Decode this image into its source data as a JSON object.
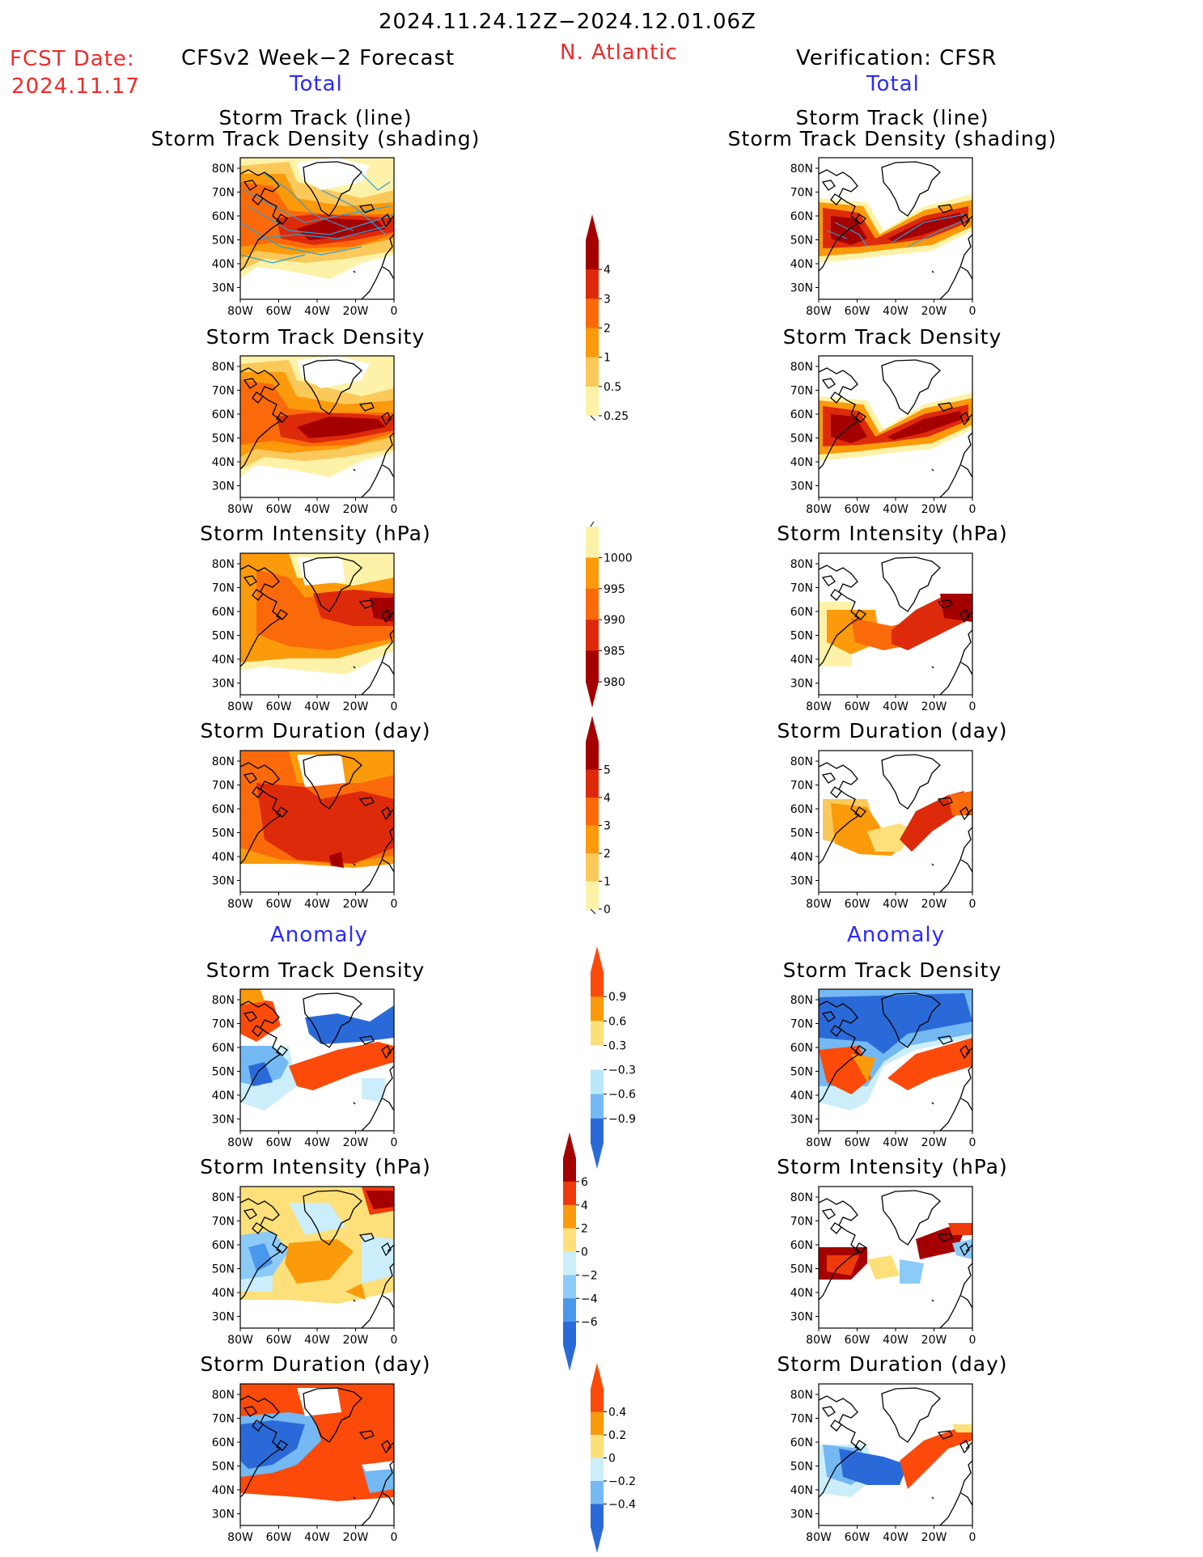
{
  "header": {
    "date_range": "2024.11.24.12Z−2024.12.01.06Z",
    "fcst_label": "FCST Date:",
    "fcst_date": "2024.11.17",
    "left_model": "CFSv2 Week−2 Forecast",
    "region": "N. Atlantic",
    "right_model": "Verification: CFSR"
  },
  "sections": {
    "total": "Total",
    "anomaly": "Anomaly"
  },
  "panel_titles": {
    "track_line": "Storm Track (line)",
    "track_density_shading": "Storm Track Density (shading)",
    "track_density": "Storm Track Density",
    "intensity": "Storm Intensity (hPa)",
    "duration": "Storm Duration (day)"
  },
  "axes": {
    "lat_labels": [
      "80N",
      "70N",
      "60N",
      "50N",
      "40N",
      "30N"
    ],
    "lon_labels": [
      "80W",
      "60W",
      "40W",
      "20W",
      "0"
    ]
  },
  "colorbars": {
    "track_density": {
      "labels": [
        "4",
        "3",
        "2",
        "1",
        "0.5",
        "0.25"
      ],
      "colors": [
        "#a50000",
        "#dd2a0a",
        "#fb6a0a",
        "#fb9a0a",
        "#fbc85a",
        "#fdf2a8"
      ]
    },
    "intensity": {
      "labels": [
        "1000",
        "995",
        "990",
        "985",
        "980"
      ],
      "colors": [
        "#fdf2a8",
        "#fb9a0a",
        "#fb6a0a",
        "#dd2a0a",
        "#a50000"
      ]
    },
    "duration": {
      "labels": [
        "5",
        "4",
        "3",
        "2",
        "1",
        "0"
      ],
      "colors": [
        "#a50000",
        "#dd2a0a",
        "#fb6a0a",
        "#fb9a0a",
        "#fbc85a",
        "#fdf2a8"
      ]
    },
    "density_anomaly": {
      "labels": [
        "0.9",
        "0.6",
        "0.3",
        "−0.3",
        "−0.6",
        "−0.9"
      ],
      "colors": [
        "#fb4a0a",
        "#fb9a0a",
        "#fde07a",
        "#ffffff",
        "#b8e8fb",
        "#74b8f4",
        "#2a6ad8"
      ]
    },
    "intensity_anomaly": {
      "labels": [
        "6",
        "4",
        "2",
        "0",
        "−2",
        "−4",
        "−6"
      ],
      "colors": [
        "#a50000",
        "#ee3a0a",
        "#fb9a0a",
        "#fde07a",
        "#cceefb",
        "#8ccaf8",
        "#4a98ec",
        "#2a6ad8"
      ]
    },
    "duration_anomaly": {
      "labels": [
        "0.4",
        "0.2",
        "0",
        "−0.2",
        "−0.4"
      ],
      "colors": [
        "#fb4a0a",
        "#fb9a0a",
        "#fde07a",
        "#cceefb",
        "#74b8f4",
        "#2a6ad8"
      ]
    }
  }
}
